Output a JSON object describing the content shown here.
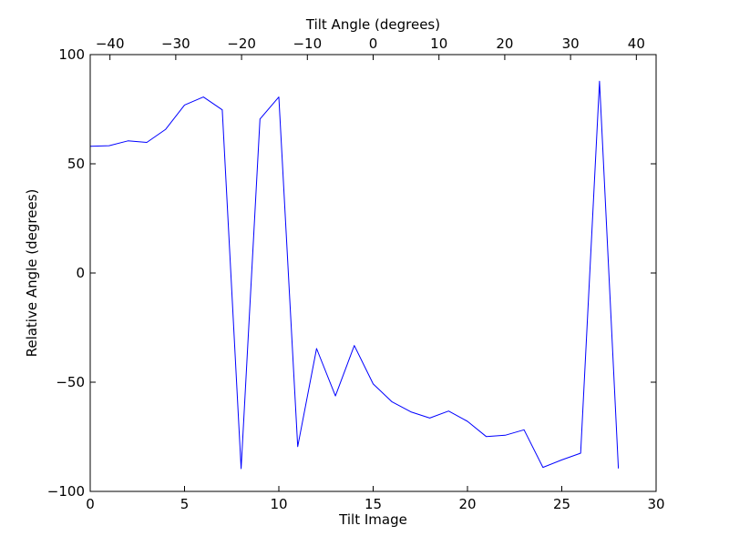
{
  "chart_data": {
    "type": "line",
    "xlabel": "Tilt Image",
    "ylabel": "Relative Angle (degrees)",
    "top_xlabel": "Tilt Angle (degrees)",
    "xlim": [
      0,
      30
    ],
    "ylim": [
      -100,
      100
    ],
    "top_xlim": [
      -43,
      43
    ],
    "grid": false,
    "x_ticks": [
      0,
      5,
      10,
      15,
      20,
      25,
      30
    ],
    "x_tick_labels": [
      "0",
      "5",
      "10",
      "15",
      "20",
      "25",
      "30"
    ],
    "y_ticks": [
      100,
      50,
      0,
      -50,
      -100
    ],
    "y_tick_labels": [
      "100",
      "50",
      "0",
      "−50",
      "−100"
    ],
    "top_x_ticks": [
      -40,
      -30,
      -20,
      -10,
      0,
      10,
      20,
      30,
      40
    ],
    "top_x_tick_labels": [
      "−40",
      "−30",
      "−20",
      "−10",
      "0",
      "10",
      "20",
      "30",
      "40"
    ],
    "series": [
      {
        "color": "#0000ff",
        "x": [
          0,
          1,
          2,
          3,
          4,
          5,
          6,
          7,
          8,
          9,
          10,
          11,
          12,
          13,
          14,
          15,
          16,
          17,
          18,
          19,
          20,
          21,
          22,
          23,
          24,
          25,
          26,
          27,
          28
        ],
        "values": [
          58,
          58.3,
          60.5,
          59.8,
          65.8,
          76.9,
          80.6,
          74.7,
          -89.6,
          70.5,
          80.6,
          -79.5,
          -34.6,
          -56.3,
          -33.2,
          -50.8,
          -59,
          -63.6,
          -66.4,
          -63.2,
          -67.9,
          -74.9,
          -74.3,
          -71.8,
          -89,
          -85.6,
          -82.5,
          87.8,
          -89.5
        ]
      }
    ]
  }
}
